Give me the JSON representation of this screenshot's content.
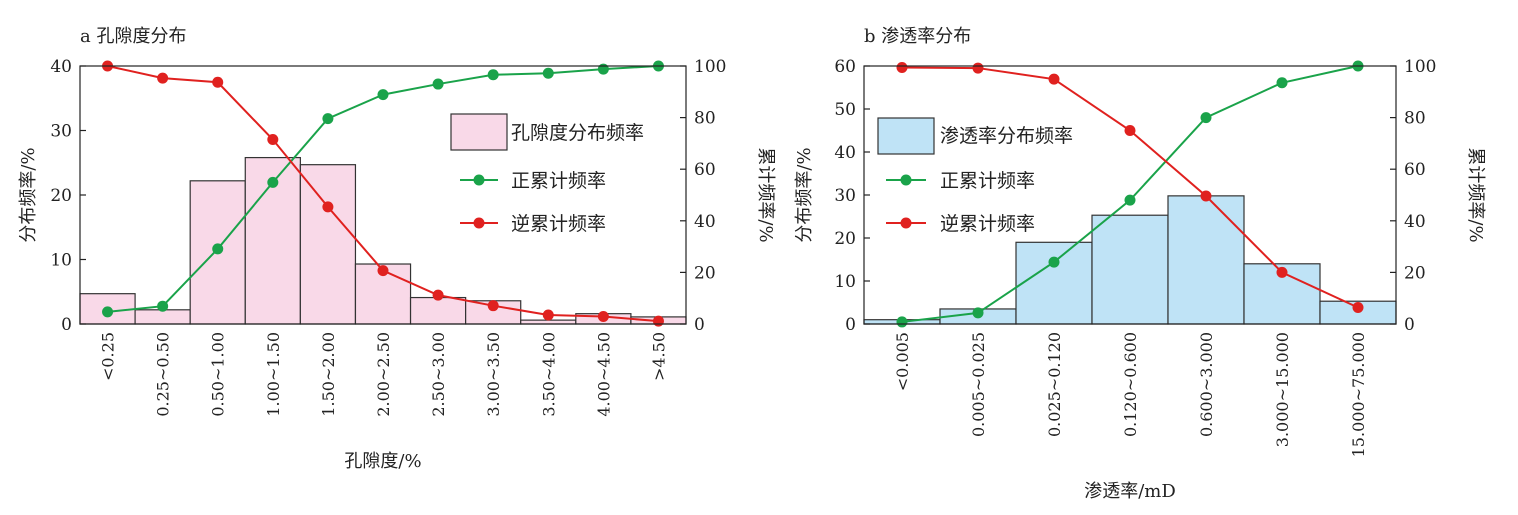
{
  "chart_data": [
    {
      "type": "bar",
      "title": "a 孔隙度分布",
      "xlabel": "孔隙度/%",
      "ylabel": "分布频率/%",
      "y2label": "累计频率/%",
      "ylim": [
        0,
        40
      ],
      "y2lim": [
        0,
        100
      ],
      "yticks": [
        "0",
        "10",
        "20",
        "30",
        "40"
      ],
      "y2ticks": [
        "0",
        "20",
        "40",
        "60",
        "80",
        "100"
      ],
      "categories": [
        "<0.25",
        "0.25~0.50",
        "0.50~1.00",
        "1.00~1.50",
        "1.50~2.00",
        "2.00~2.50",
        "2.50~3.00",
        "3.00~3.50",
        "3.50~4.00",
        "4.00~4.50",
        ">4.50"
      ],
      "series": [
        {
          "name": "孔隙度分布频率",
          "kind": "bar",
          "axis": "left",
          "values": [
            4.7,
            2.2,
            22.2,
            25.8,
            24.7,
            9.3,
            4.1,
            3.6,
            0.6,
            1.6,
            1.1
          ]
        },
        {
          "name": "正累计频率",
          "kind": "line",
          "axis": "right",
          "values": [
            4.7,
            6.9,
            29.1,
            54.9,
            79.6,
            88.9,
            93.0,
            96.6,
            97.2,
            98.8,
            100
          ]
        },
        {
          "name": "逆累计频率",
          "kind": "line",
          "axis": "right",
          "values": [
            100,
            95.3,
            93.7,
            71.5,
            45.4,
            20.7,
            11.2,
            7.1,
            3.5,
            2.9,
            1.1
          ]
        }
      ],
      "colors": {
        "bar": "#f9d9e8",
        "up": "#1aa34a",
        "down": "#e0211f"
      },
      "legend": "right"
    },
    {
      "type": "bar",
      "title": "b 渗透率分布",
      "xlabel": "渗透率/mD",
      "ylabel": "分布频率/%",
      "y2label": "累计频率/%",
      "ylim": [
        0,
        60
      ],
      "y2lim": [
        0,
        100
      ],
      "yticks": [
        "0",
        "10",
        "20",
        "30",
        "40",
        "50",
        "60"
      ],
      "y2ticks": [
        "0",
        "20",
        "40",
        "60",
        "80",
        "100"
      ],
      "categories": [
        "<0.005",
        "0.005~0.025",
        "0.025~0.120",
        "0.120~0.600",
        "0.600~3.000",
        "3.000~15.000",
        "15.000~75.000"
      ],
      "series": [
        {
          "name": "渗透率分布频率",
          "kind": "bar",
          "axis": "left",
          "values": [
            1.0,
            3.5,
            19.0,
            25.3,
            29.8,
            14.0,
            5.3
          ]
        },
        {
          "name": "正累计频率",
          "kind": "line",
          "axis": "right",
          "values": [
            0.8,
            4.3,
            24.0,
            48.0,
            80.0,
            93.5,
            100
          ]
        },
        {
          "name": "逆累计频率",
          "kind": "line",
          "axis": "right",
          "values": [
            99.4,
            99.2,
            94.9,
            75.0,
            49.6,
            20.0,
            6.4
          ]
        }
      ],
      "colors": {
        "bar": "#bfe3f6",
        "up": "#1aa34a",
        "down": "#e0211f"
      },
      "legend": "top-left"
    }
  ]
}
